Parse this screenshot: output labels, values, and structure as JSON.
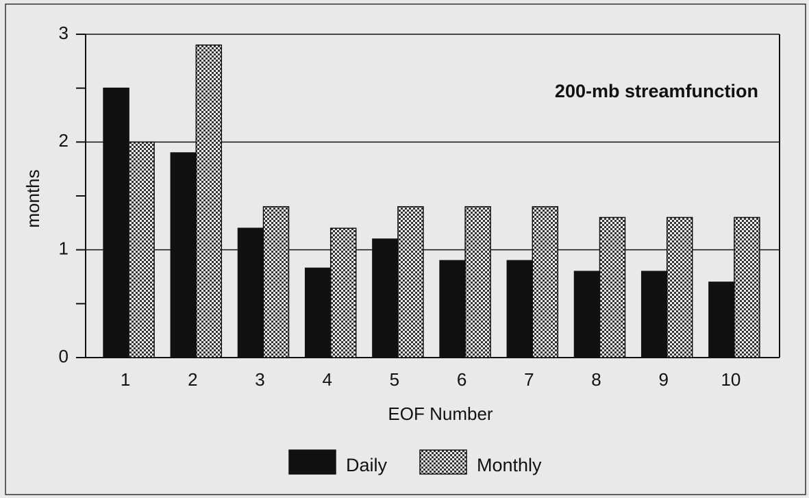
{
  "chart_data": {
    "type": "bar",
    "title": "200-mb streamfunction",
    "xlabel": "EOF Number",
    "ylabel": "months",
    "categories": [
      "1",
      "2",
      "3",
      "4",
      "5",
      "6",
      "7",
      "8",
      "9",
      "10"
    ],
    "series": [
      {
        "name": "Daily",
        "color": "#111111",
        "pattern": false,
        "values": [
          2.5,
          1.9,
          1.2,
          0.83,
          1.1,
          0.9,
          0.9,
          0.8,
          0.8,
          0.7
        ]
      },
      {
        "name": "Monthly",
        "color": "#333333",
        "pattern": true,
        "values": [
          2.0,
          2.9,
          1.4,
          1.2,
          1.4,
          1.4,
          1.4,
          1.3,
          1.3,
          1.3
        ]
      }
    ],
    "ylim": [
      0,
      3
    ],
    "yticks": [
      0,
      1,
      2,
      3
    ],
    "yminorticks": [
      0.5,
      1.5,
      2.5
    ],
    "grid": true,
    "legend": "bottom"
  }
}
